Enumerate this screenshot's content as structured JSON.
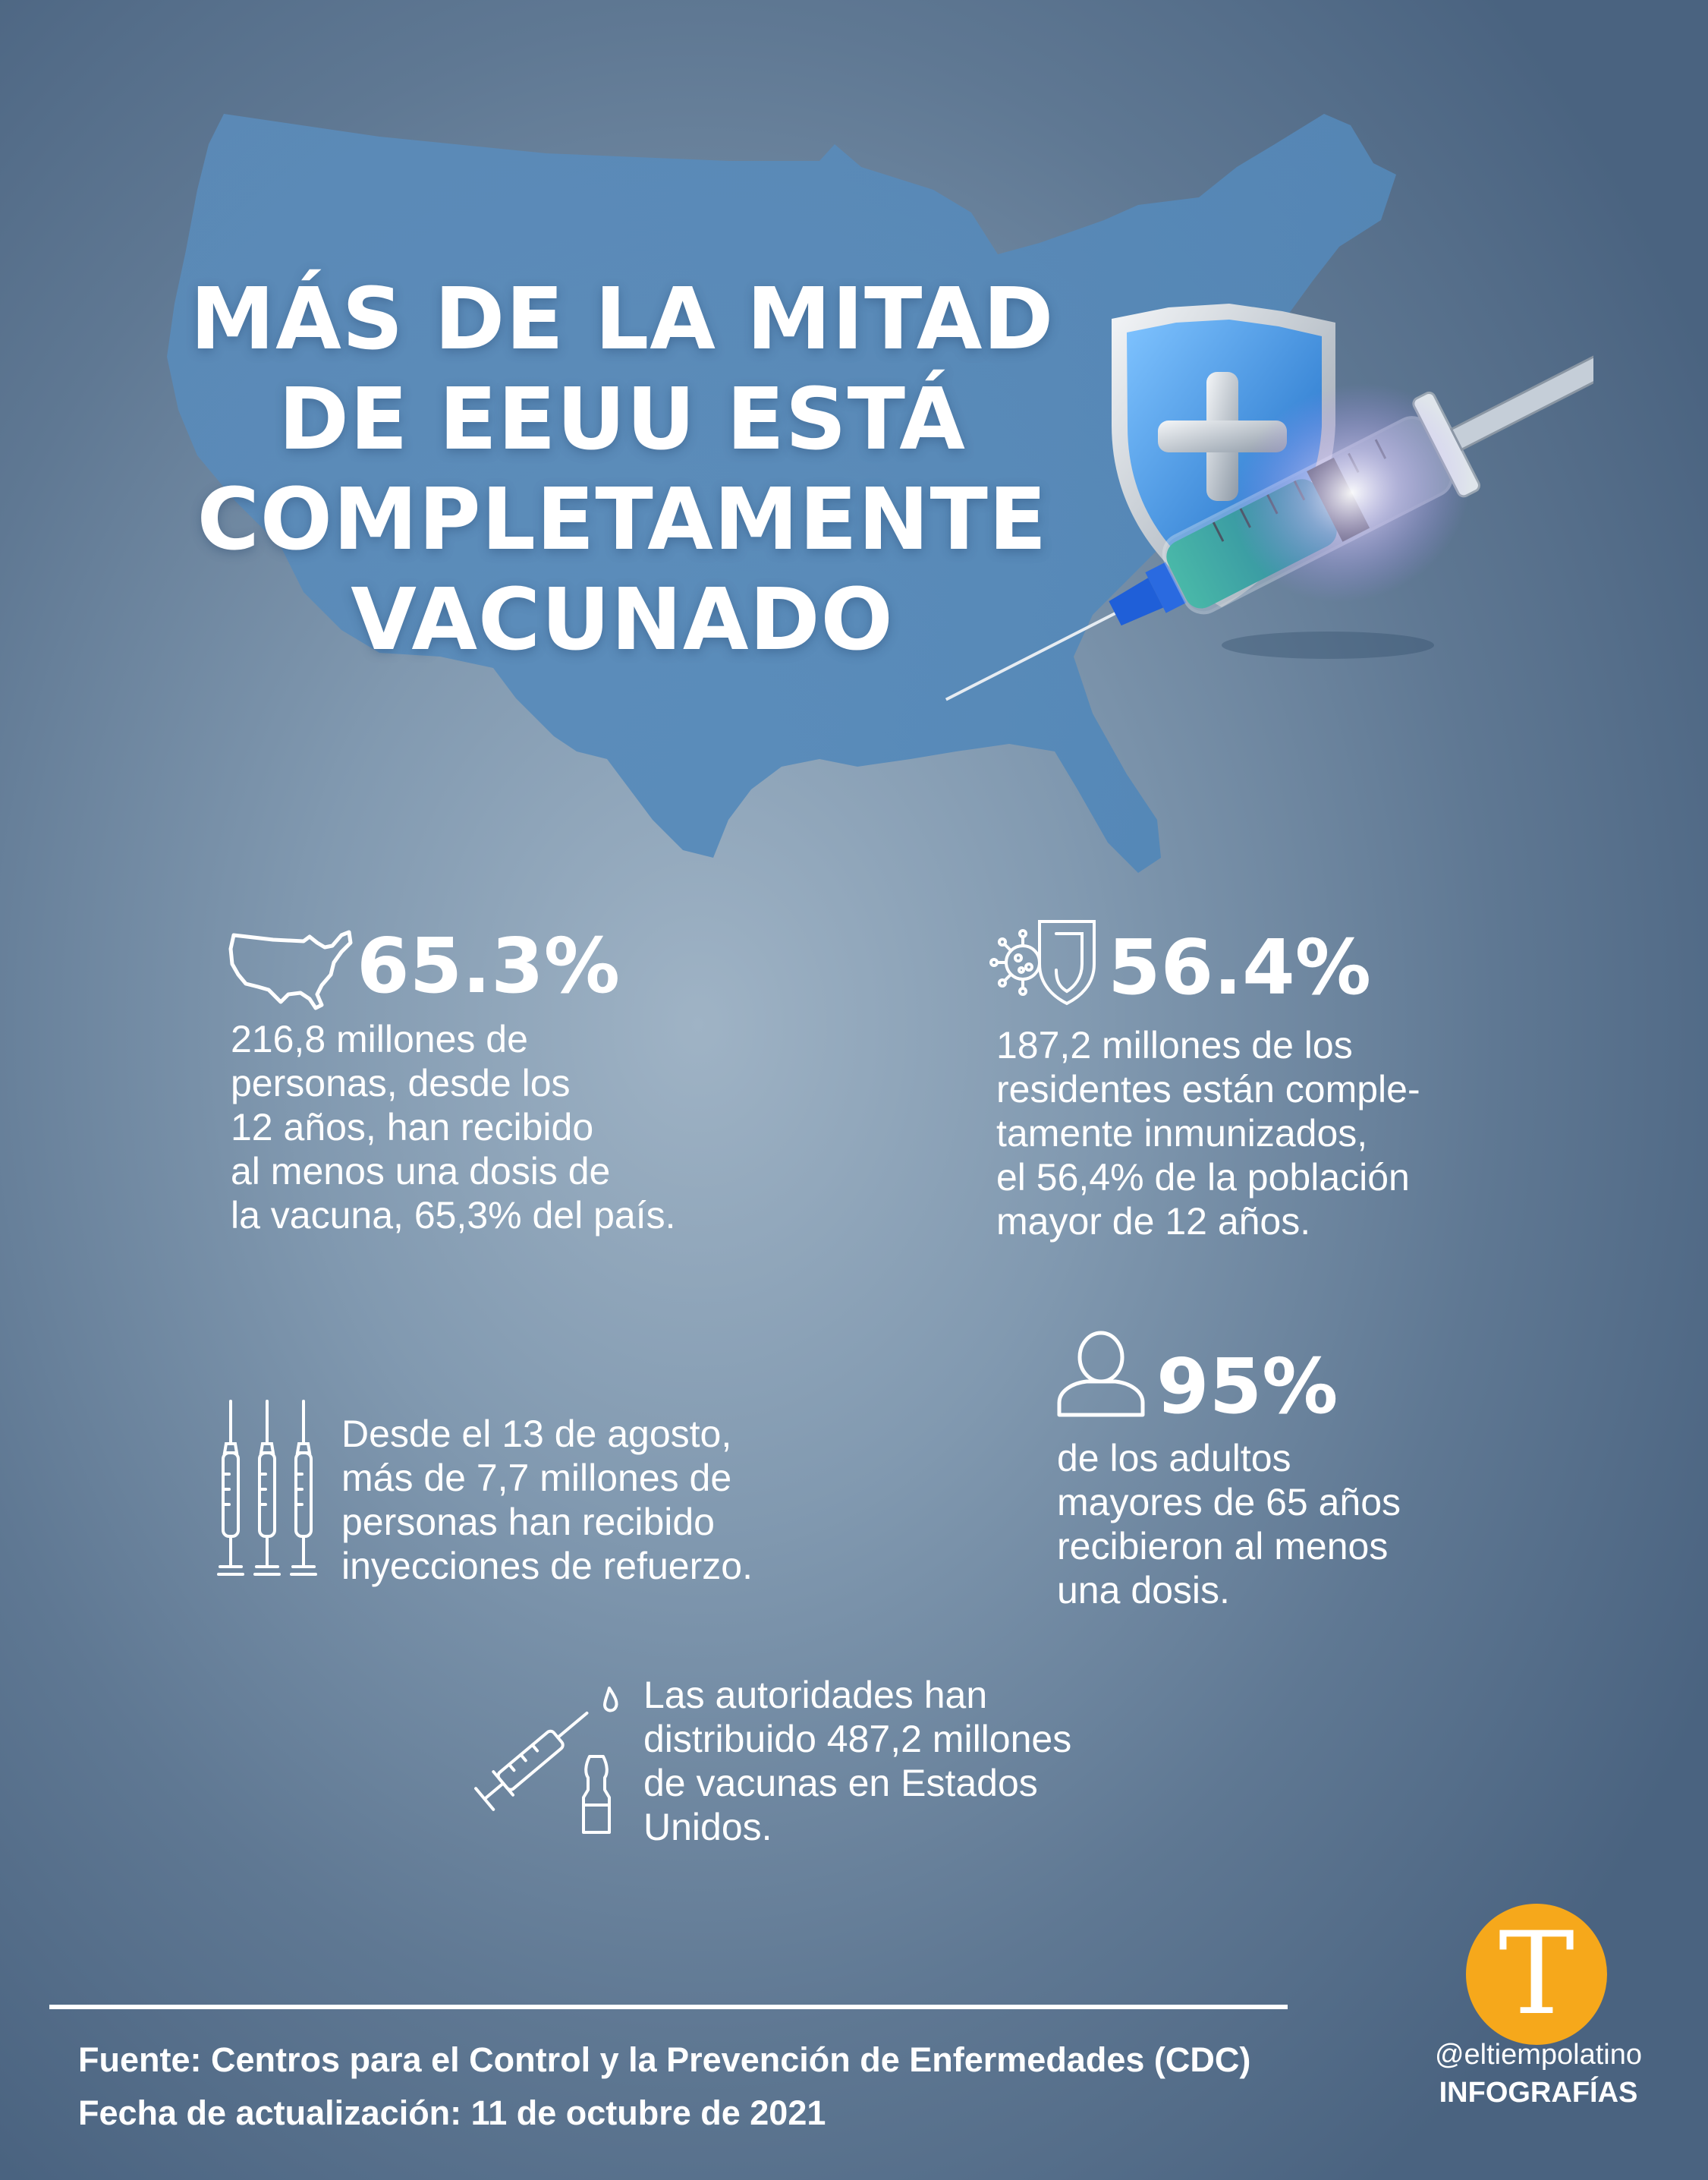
{
  "title": {
    "line1": "MÁS DE LA MITAD",
    "line2": "DE EEUU ESTÁ",
    "line3": "COMPLETAMENTE",
    "line4": "VACUNADO"
  },
  "stats": [
    {
      "icon": "usa-map-icon",
      "value": "65.3%",
      "text": "216,8 millones de\npersonas, desde los\n12 años, han recibido\nal menos una dosis de\nla vacuna, 65,3% del país."
    },
    {
      "icon": "virus-shield-icon",
      "value": "56.4%",
      "text": "187,2 millones de los\nresidentes están comple-\ntamente inmunizados,\nel 56,4% de la población\nmayor de 12 años."
    },
    {
      "icon": "syringes-icon",
      "value": "",
      "text": "Desde el 13 de agosto,\nmás de 7,7 millones de\npersonas han recibido\ninyecciones de refuerzo."
    },
    {
      "icon": "person-icon",
      "value": "95%",
      "text": "de los adultos\nmayores de 65 años\nrecibieron al menos\nuna dosis."
    },
    {
      "icon": "syringe-vial-icon",
      "value": "",
      "text": "Las autoridades han\ndistribuido 487,2 millones\nde vacunas en Estados\nUnidos."
    }
  ],
  "footer": {
    "source": "Fuente: Centros para el Control y la Prevención de Enfermedades (CDC)",
    "updated": "Fecha de actualización: 11 de octubre de 2021"
  },
  "brand": {
    "logo_letter": "T",
    "handle": "@eltiempolatino",
    "section": "INFOGRAFÍAS",
    "logo_color": "#f6a81b"
  },
  "colors": {
    "background": "#7f97ae",
    "map": "#5d8fbc",
    "text": "#ffffff"
  }
}
